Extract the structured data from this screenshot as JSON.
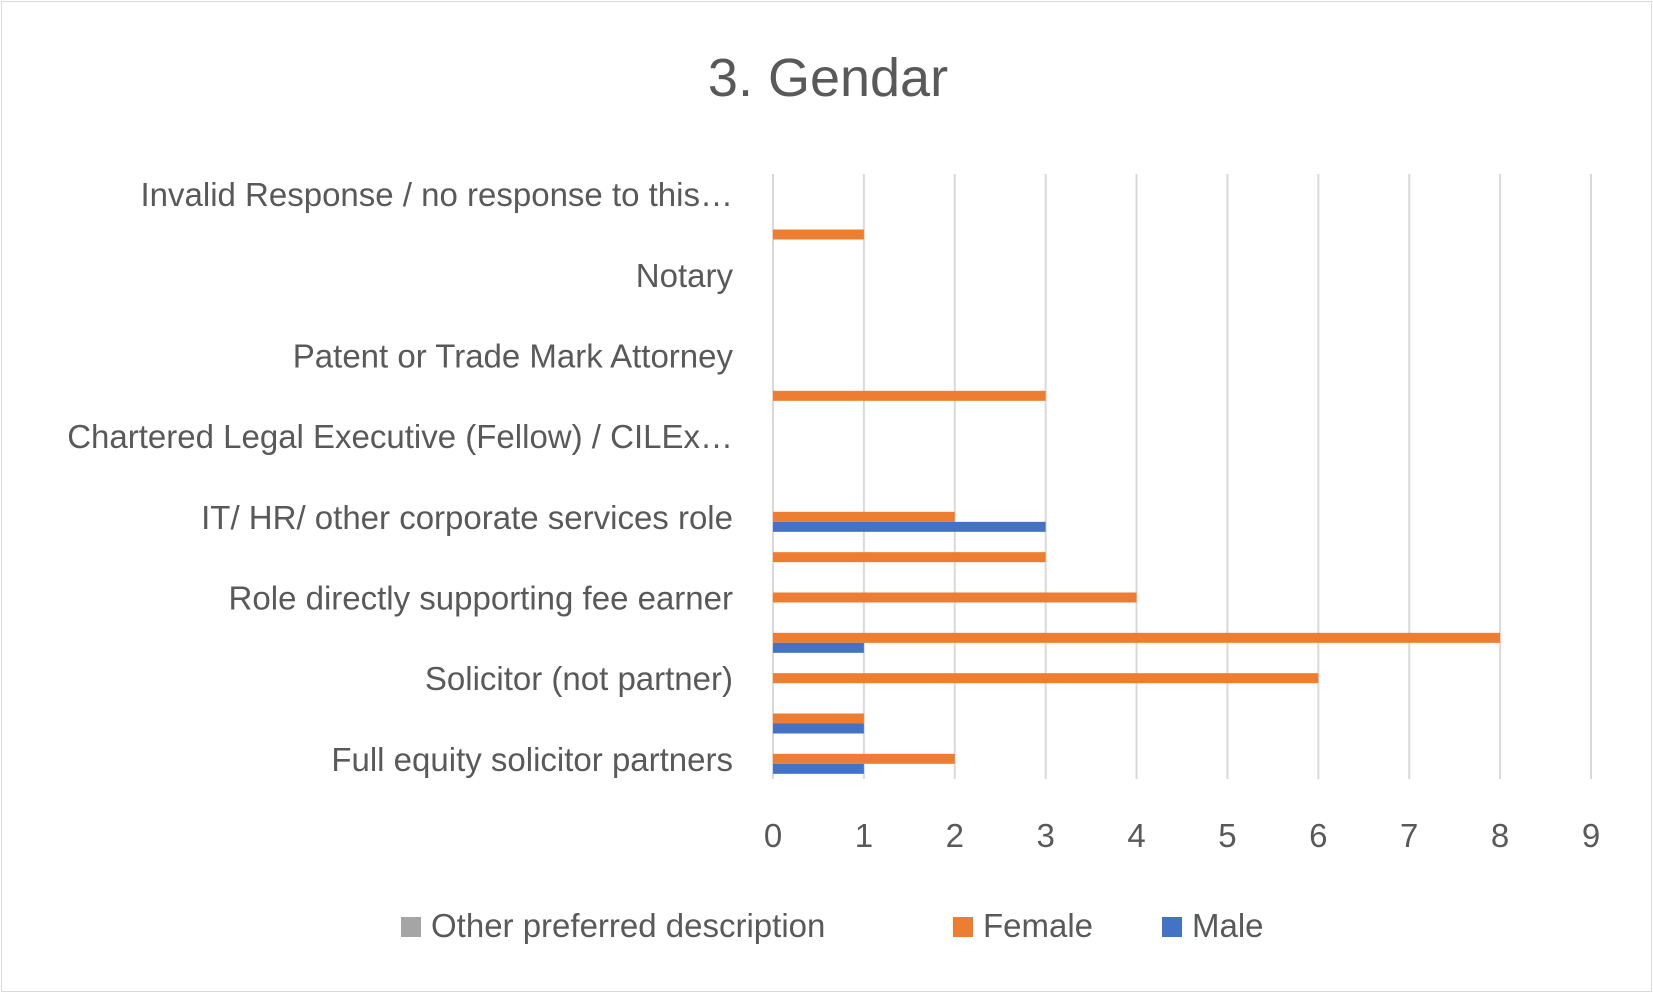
{
  "chart_data": {
    "type": "bar",
    "orientation": "horizontal",
    "title": "3. Gendar",
    "xlabel": "",
    "ylabel": "",
    "xlim": [
      0,
      9
    ],
    "xticks": [
      "0",
      "1",
      "2",
      "3",
      "4",
      "5",
      "6",
      "7",
      "8",
      "9"
    ],
    "grid": true,
    "legend_position": "bottom",
    "categories_top_to_bottom": [
      {
        "label": "Invalid Response / no response to this…",
        "slot": 0
      },
      {
        "label": "",
        "slot": 1
      },
      {
        "label": "Notary",
        "slot": 2
      },
      {
        "label": "",
        "slot": 3
      },
      {
        "label": "Patent or Trade Mark Attorney",
        "slot": 4
      },
      {
        "label": "",
        "slot": 5
      },
      {
        "label": "Chartered Legal Executive (Fellow) / CILEx…",
        "slot": 6
      },
      {
        "label": "",
        "slot": 7
      },
      {
        "label": "IT/ HR/ other corporate services role",
        "slot": 8
      },
      {
        "label": "",
        "slot": 9
      },
      {
        "label": "Role directly supporting fee earner",
        "slot": 10
      },
      {
        "label": "",
        "slot": 11
      },
      {
        "label": "Solicitor (not partner)",
        "slot": 12
      },
      {
        "label": "",
        "slot": 13
      },
      {
        "label": "Full equity solicitor partners",
        "slot": 14
      }
    ],
    "series": [
      {
        "name": "Other preferred description",
        "color": "#a5a5a5",
        "values": [
          0,
          0,
          0,
          0,
          0,
          0,
          0,
          0,
          0,
          0,
          0,
          0,
          0,
          0,
          0
        ]
      },
      {
        "name": "Female",
        "color": "#ed7d31",
        "values": [
          0,
          1,
          0,
          0,
          0,
          3,
          0,
          0,
          2,
          3,
          4,
          8,
          6,
          1,
          2
        ]
      },
      {
        "name": "Male",
        "color": "#4472c4",
        "values": [
          0,
          0,
          0,
          0,
          0,
          0,
          0,
          0,
          3,
          0,
          0,
          1,
          0,
          1,
          1
        ]
      }
    ]
  }
}
